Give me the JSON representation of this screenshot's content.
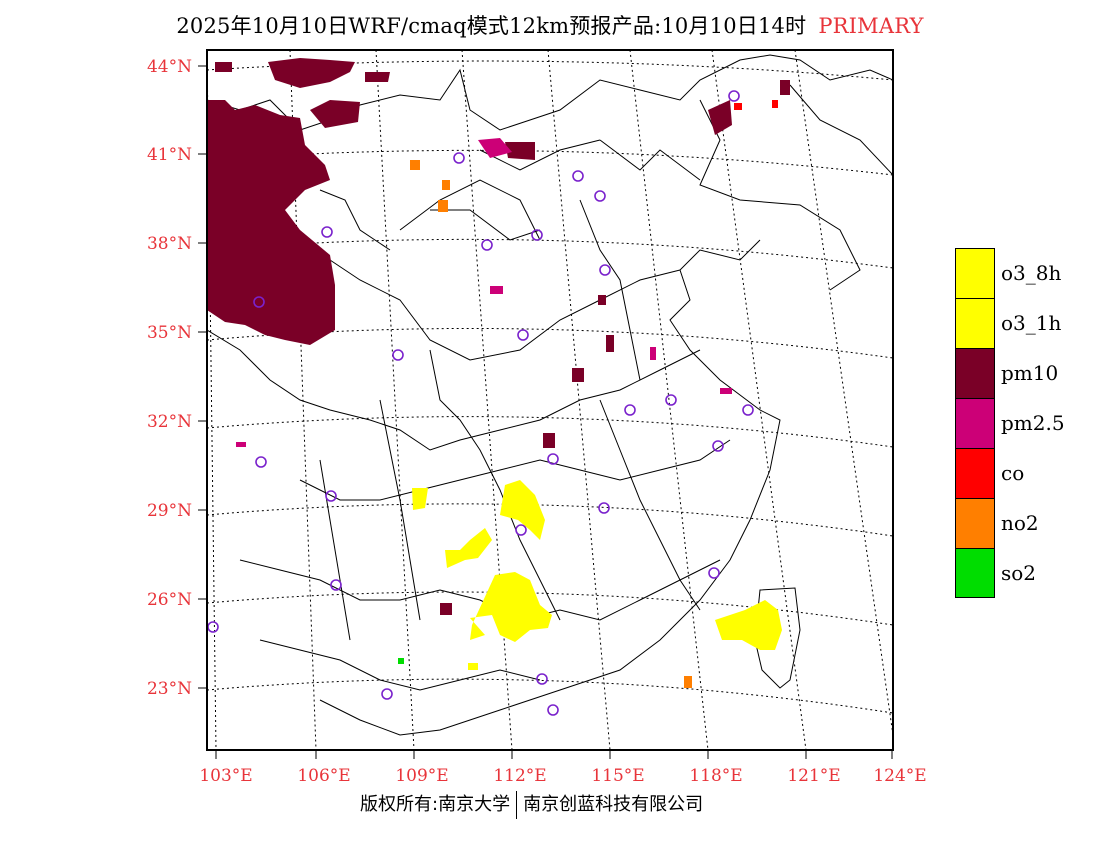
{
  "title": {
    "main": "2025年10月10日WRF/cmaq模式12km预报产品:10月10日14时",
    "tag": "PRIMARY"
  },
  "footer": {
    "left": "版权所有:南京大学",
    "right": "南京创蓝科技有限公司"
  },
  "axes": {
    "lat_labels": [
      "44°N",
      "41°N",
      "38°N",
      "35°N",
      "32°N",
      "29°N",
      "26°N",
      "23°N"
    ],
    "lon_labels": [
      "103°E",
      "106°E",
      "109°E",
      "112°E",
      "115°E",
      "118°E",
      "121°E",
      "124°E"
    ],
    "label_color": "#e8343a"
  },
  "legend": [
    {
      "label": "o3_8h",
      "color": "#ffff00"
    },
    {
      "label": "o3_1h",
      "color": "#ffff00"
    },
    {
      "label": "pm10",
      "color": "#7a0027"
    },
    {
      "label": "pm2.5",
      "color": "#cc0077"
    },
    {
      "label": "co",
      "color": "#ff0000"
    },
    {
      "label": "no2",
      "color": "#ff7f00"
    },
    {
      "label": "so2",
      "color": "#00dd00"
    }
  ],
  "icons": {
    "station_marker": "circle-marker-icon"
  }
}
